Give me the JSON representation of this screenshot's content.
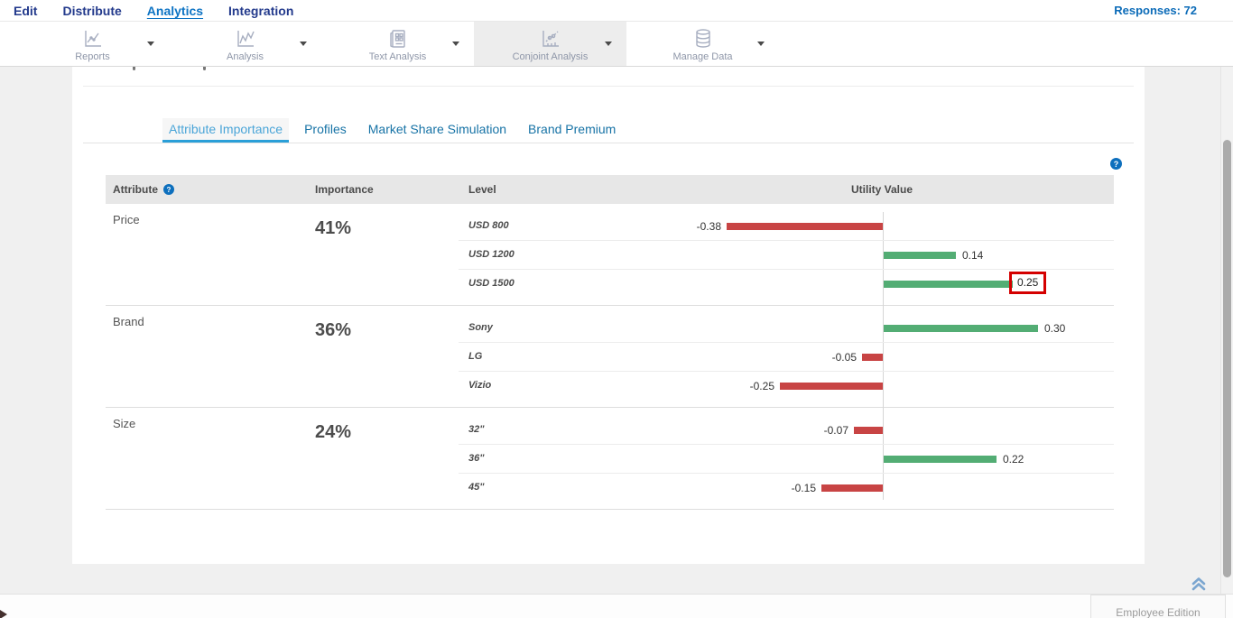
{
  "nav": {
    "items": [
      {
        "label": "Edit",
        "active": false
      },
      {
        "label": "Distribute",
        "active": false
      },
      {
        "label": "Analytics",
        "active": true
      },
      {
        "label": "Integration",
        "active": false
      }
    ],
    "responses": "Responses: 72"
  },
  "toolbar": {
    "items": [
      {
        "label": "Reports",
        "icon": "reports-chart-icon",
        "active": false
      },
      {
        "label": "Analysis",
        "icon": "analysis-chart-icon",
        "active": false
      },
      {
        "label": "Text Analysis",
        "icon": "text-analysis-icon",
        "active": false
      },
      {
        "label": "Conjoint Analysis",
        "icon": "conjoint-chart-icon",
        "active": true
      },
      {
        "label": "Manage Data",
        "icon": "database-icon",
        "active": false
      }
    ]
  },
  "tabs": [
    {
      "label": "Attribute Importance",
      "active": true
    },
    {
      "label": "Profiles",
      "active": false
    },
    {
      "label": "Market Share Simulation",
      "active": false
    },
    {
      "label": "Brand Premium",
      "active": false
    }
  ],
  "table_headers": {
    "attribute": "Attribute",
    "importance": "Importance",
    "level": "Level",
    "utility": "Utility Value"
  },
  "chart_data": {
    "type": "bar",
    "orientation": "horizontal",
    "value_column": "Utility Value",
    "positive_color": "#53ad74",
    "negative_color": "#c84444",
    "highlight_box_color": "#d40000",
    "axis_zero_line": true,
    "groups": [
      {
        "attribute": "Price",
        "importance": "41%",
        "levels": [
          {
            "label": "USD 800",
            "value": -0.38,
            "highlighted": false
          },
          {
            "label": "USD 1200",
            "value": 0.14,
            "highlighted": false
          },
          {
            "label": "USD 1500",
            "value": 0.25,
            "highlighted": true
          }
        ]
      },
      {
        "attribute": "Brand",
        "importance": "36%",
        "levels": [
          {
            "label": "Sony",
            "value": 0.3,
            "highlighted": false
          },
          {
            "label": "LG",
            "value": -0.05,
            "highlighted": false
          },
          {
            "label": "Vizio",
            "value": -0.25,
            "highlighted": false
          }
        ]
      },
      {
        "attribute": "Size",
        "importance": "24%",
        "levels": [
          {
            "label": "32\"",
            "value": -0.07,
            "highlighted": false
          },
          {
            "label": "36\"",
            "value": 0.22,
            "highlighted": false
          },
          {
            "label": "45\"",
            "value": -0.15,
            "highlighted": false
          }
        ]
      }
    ]
  },
  "footer": {
    "edition_label": "Employee Edition"
  },
  "colors": {
    "accent_blue": "#0d6fbd",
    "active_tab_blue": "#4aa5d8",
    "inactive_tab_blue": "#1773a6",
    "nav_navy": "#233a8c",
    "nav_active_blue": "#0e74c4"
  }
}
